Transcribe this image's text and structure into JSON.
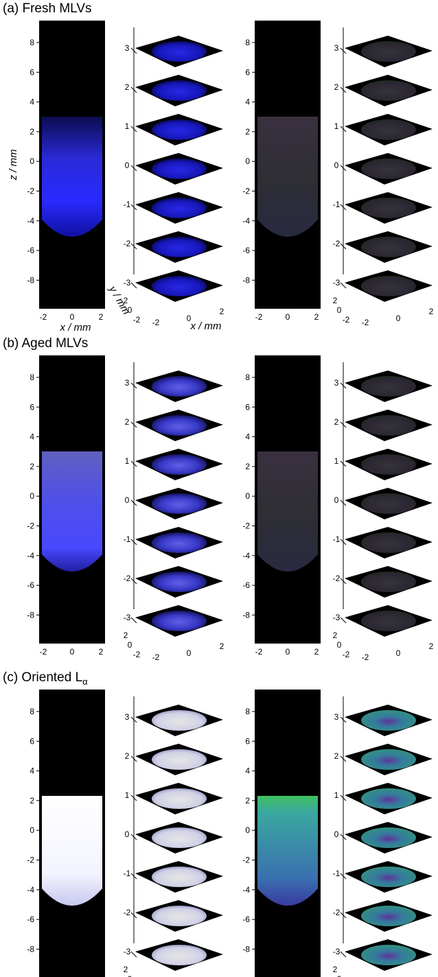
{
  "panels": [
    {
      "id": "a",
      "title": "(a) Fresh MLVs",
      "tint": "blue",
      "stack_left": "map",
      "stack_right": "dirty"
    },
    {
      "id": "b",
      "title": "(b) Aged MLVs",
      "tint": "bluewhite",
      "stack_left": "map",
      "stack_right": "dirty"
    },
    {
      "id": "c",
      "title": "(c) Oriented L",
      "title_subscript": "α",
      "tint": "white",
      "stack_left": "white",
      "stack_right": "teal"
    }
  ],
  "axes": {
    "z_label": "z / mm",
    "x_label": "x / mm",
    "y_label": "y / mm",
    "z_ticks": [
      "8",
      "6",
      "4",
      "2",
      "0",
      "-2",
      "-4",
      "-6",
      "-8"
    ],
    "x_ticks": [
      "-2",
      "0",
      "2"
    ],
    "y_ticks": [
      "2",
      "0",
      "-2"
    ],
    "slice_ticks": [
      "3",
      "2",
      "1",
      "0",
      "-1",
      "-2",
      "-3"
    ]
  },
  "colors": {
    "background": "#000000",
    "blue": "#2a2cf0",
    "white": "#f2f2ff",
    "teal": "#3aa7a0",
    "magenta": "#b040c0",
    "green": "#50d040"
  }
}
